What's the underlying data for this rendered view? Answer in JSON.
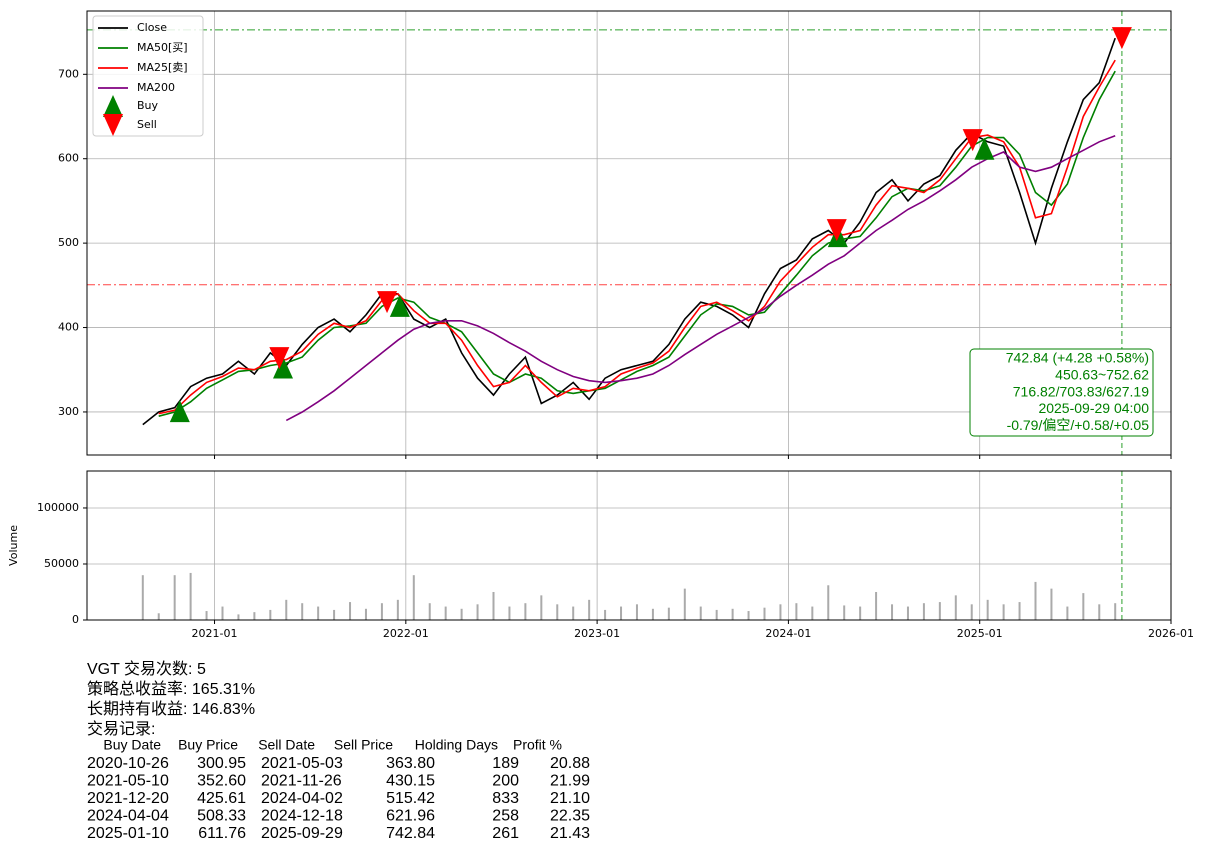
{
  "chart_data": [
    {
      "type": "line",
      "x": [
        "2020-08",
        "2020-09",
        "2020-10",
        "2020-11",
        "2020-12",
        "2021-01",
        "2021-02",
        "2021-03",
        "2021-04",
        "2021-05",
        "2021-06",
        "2021-07",
        "2021-08",
        "2021-09",
        "2021-10",
        "2021-11",
        "2021-12",
        "2022-01",
        "2022-02",
        "2022-03",
        "2022-04",
        "2022-05",
        "2022-06",
        "2022-07",
        "2022-08",
        "2022-09",
        "2022-10",
        "2022-11",
        "2022-12",
        "2023-01",
        "2023-02",
        "2023-03",
        "2023-04",
        "2023-05",
        "2023-06",
        "2023-07",
        "2023-08",
        "2023-09",
        "2023-10",
        "2023-11",
        "2023-12",
        "2024-01",
        "2024-02",
        "2024-03",
        "2024-04",
        "2024-05",
        "2024-06",
        "2024-07",
        "2024-08",
        "2024-09",
        "2024-10",
        "2024-11",
        "2024-12",
        "2025-01",
        "2025-02",
        "2025-03",
        "2025-04",
        "2025-05",
        "2025-06",
        "2025-07",
        "2025-08",
        "2025-09"
      ],
      "series": [
        {
          "name": "Close",
          "color": "#000000",
          "values": [
            285,
            300,
            305,
            330,
            340,
            345,
            360,
            345,
            370,
            355,
            380,
            400,
            410,
            395,
            415,
            440,
            440,
            410,
            400,
            410,
            370,
            340,
            320,
            345,
            365,
            310,
            320,
            335,
            315,
            340,
            350,
            355,
            360,
            380,
            410,
            430,
            425,
            415,
            400,
            440,
            470,
            480,
            505,
            515,
            500,
            525,
            560,
            575,
            550,
            570,
            580,
            610,
            630,
            620,
            615,
            560,
            500,
            565,
            620,
            670,
            690,
            742.84
          ]
        },
        {
          "name": "MA50[买]",
          "color": "#008000",
          "values": [
            null,
            295,
            300,
            312,
            328,
            338,
            348,
            350,
            355,
            358,
            365,
            385,
            400,
            402,
            405,
            425,
            435,
            430,
            412,
            405,
            395,
            370,
            345,
            335,
            345,
            340,
            325,
            322,
            325,
            328,
            338,
            348,
            355,
            365,
            390,
            415,
            428,
            425,
            415,
            418,
            440,
            462,
            485,
            500,
            505,
            508,
            530,
            555,
            565,
            562,
            568,
            590,
            615,
            625,
            625,
            605,
            560,
            545,
            570,
            625,
            670,
            703.83
          ]
        },
        {
          "name": "MA25[卖]",
          "color": "#ff0000",
          "values": [
            null,
            298,
            302,
            320,
            335,
            342,
            352,
            350,
            360,
            362,
            372,
            392,
            405,
            400,
            408,
            432,
            440,
            420,
            405,
            405,
            385,
            355,
            330,
            335,
            355,
            335,
            318,
            328,
            325,
            330,
            345,
            352,
            358,
            372,
            400,
            425,
            430,
            420,
            408,
            425,
            455,
            475,
            495,
            510,
            510,
            515,
            545,
            568,
            565,
            560,
            575,
            600,
            625,
            628,
            620,
            590,
            530,
            535,
            590,
            650,
            685,
            716.82
          ]
        },
        {
          "name": "MA200",
          "color": "#800080",
          "values": [
            null,
            null,
            null,
            null,
            null,
            null,
            null,
            null,
            null,
            290,
            300,
            312,
            325,
            340,
            355,
            370,
            385,
            398,
            405,
            408,
            408,
            402,
            393,
            382,
            372,
            360,
            350,
            342,
            337,
            335,
            337,
            340,
            345,
            355,
            368,
            380,
            392,
            402,
            412,
            422,
            437,
            450,
            462,
            475,
            485,
            500,
            515,
            527,
            540,
            550,
            562,
            575,
            590,
            600,
            608,
            590,
            585,
            590,
            600,
            610,
            620,
            627.19
          ]
        }
      ],
      "markers": [
        {
          "name": "Buy",
          "color": "#008000",
          "marker": "up",
          "x": [
            "2020-10-26",
            "2021-05-10",
            "2021-12-20",
            "2024-04-04",
            "2025-01-10"
          ],
          "values": [
            300.95,
            352.6,
            425.61,
            508.33,
            611.76
          ]
        },
        {
          "name": "Sell",
          "color": "#ff0000",
          "marker": "down",
          "x": [
            "2021-05-03",
            "2021-11-26",
            "2024-04-02",
            "2024-12-18",
            "2025-09-29"
          ],
          "values": [
            363.8,
            430.15,
            515.42,
            621.96,
            742.84
          ]
        }
      ],
      "hlines": [
        {
          "value": 752.62,
          "color": "#2ca02c"
        },
        {
          "value": 450.63,
          "color": "#ff4444"
        }
      ],
      "vline": "2025-09-29",
      "annotation": [
        "742.84 (+4.28 +0.58%)",
        "450.63~752.62",
        "716.82/703.83/627.19",
        "2025-09-29 04:00",
        "-0.79/偏空/+0.58/+0.05"
      ],
      "xlim": [
        "2020-05",
        "2026-01"
      ],
      "ylim": [
        249,
        775
      ],
      "yticks": [
        300,
        400,
        500,
        600,
        700
      ],
      "grid": true,
      "legend": "upper left"
    },
    {
      "type": "bar",
      "ylabel": "Volume",
      "x": [
        "2020-08",
        "2020-09",
        "2020-10",
        "2020-11",
        "2020-12",
        "2021-01",
        "2021-02",
        "2021-03",
        "2021-04",
        "2021-05",
        "2021-06",
        "2021-07",
        "2021-08",
        "2021-09",
        "2021-10",
        "2021-11",
        "2021-12",
        "2022-01",
        "2022-02",
        "2022-03",
        "2022-04",
        "2022-05",
        "2022-06",
        "2022-07",
        "2022-08",
        "2022-09",
        "2022-10",
        "2022-11",
        "2022-12",
        "2023-01",
        "2023-02",
        "2023-03",
        "2023-04",
        "2023-05",
        "2023-06",
        "2023-07",
        "2023-08",
        "2023-09",
        "2023-10",
        "2023-11",
        "2023-12",
        "2024-01",
        "2024-02",
        "2024-03",
        "2024-04",
        "2024-05",
        "2024-06",
        "2024-07",
        "2024-08",
        "2024-09",
        "2024-10",
        "2024-11",
        "2024-12",
        "2025-01",
        "2025-02",
        "2025-03",
        "2025-04",
        "2025-05",
        "2025-06",
        "2025-07",
        "2025-08",
        "2025-09"
      ],
      "values": [
        40000,
        6000,
        40000,
        42000,
        8000,
        12000,
        5000,
        7000,
        9000,
        18000,
        15000,
        12000,
        9000,
        16000,
        10000,
        15000,
        18000,
        40000,
        15000,
        12000,
        10000,
        14000,
        25000,
        12000,
        15000,
        22000,
        14000,
        12000,
        18000,
        9000,
        12000,
        14000,
        10000,
        11000,
        28000,
        12000,
        9000,
        10000,
        8000,
        11000,
        14000,
        15000,
        12000,
        31000,
        13000,
        12000,
        25000,
        14000,
        12000,
        15000,
        16000,
        22000,
        14000,
        18000,
        14000,
        16000,
        34000,
        28000,
        12000,
        24000,
        14000,
        15000
      ],
      "color": "#aaaaaa",
      "xlim": [
        "2020-05",
        "2026-01"
      ],
      "xticks": [
        "2021-01",
        "2022-01",
        "2023-01",
        "2024-01",
        "2025-01",
        "2026-01"
      ],
      "ylim": [
        0,
        133000
      ],
      "yticks": [
        0,
        50000,
        100000
      ],
      "grid": true
    }
  ],
  "report": {
    "lines": [
      "VGT 交易次数: 5",
      "策略总收益率: 165.31%",
      "长期持有收益: 146.83%",
      "交易记录:"
    ],
    "columns": [
      "Buy Date",
      "Buy Price",
      "Sell Date",
      "Sell Price",
      "Holding Days",
      "Profit %"
    ],
    "rows": [
      [
        "2020-10-26",
        "300.95",
        "2021-05-03",
        "363.80",
        "189",
        "20.88"
      ],
      [
        "2021-05-10",
        "352.60",
        "2021-11-26",
        "430.15",
        "200",
        "21.99"
      ],
      [
        "2021-12-20",
        "425.61",
        "2024-04-02",
        "515.42",
        "833",
        "21.10"
      ],
      [
        "2024-04-04",
        "508.33",
        "2024-12-18",
        "621.96",
        "258",
        "22.35"
      ],
      [
        "2025-01-10",
        "611.76",
        "2025-09-29",
        "742.84",
        "261",
        "21.43"
      ]
    ]
  }
}
